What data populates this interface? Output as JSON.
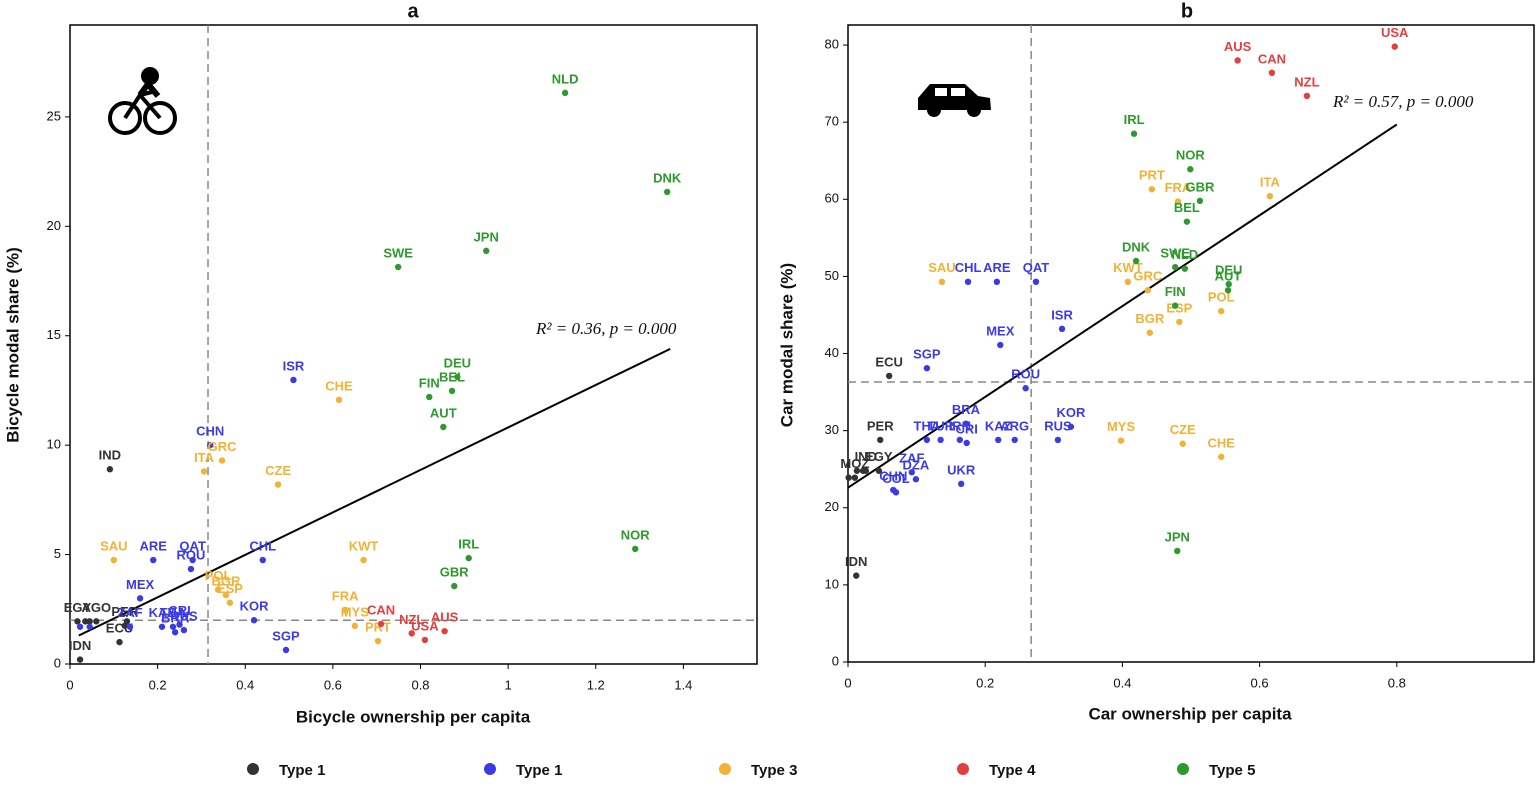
{
  "chart_data": [
    {
      "type": "scatter",
      "title": "a",
      "xlabel": "Bicycle ownership per capita",
      "ylabel": "Bicycle modal share (%)",
      "xlim": [
        0,
        1.568
      ],
      "ylim": [
        0,
        29.2
      ],
      "xticks": [
        0,
        0.2,
        0.4,
        0.6,
        0.8,
        1,
        1.2,
        1.4
      ],
      "yticks": [
        0,
        5,
        10,
        15,
        20,
        25
      ],
      "reference_lines": {
        "x": 0.315,
        "y": 2
      },
      "fit": {
        "x": [
          0.02,
          1.37
        ],
        "values": [
          1.3,
          14.4
        ]
      },
      "annotation": "R² = 0.36, p = 0.000",
      "series": [
        {
          "color": "#333333",
          "labels": [
            "IND",
            "IDN",
            "ECU",
            "PER",
            "EGY",
            "AGO",
            null,
            null,
            null
          ],
          "x": [
            0.091,
            0.023,
            0.113,
            0.125,
            0.017,
            0.06,
            0.035,
            0.045,
            0.13
          ],
          "values": [
            8.9,
            0.2,
            1.0,
            1.75,
            1.95,
            1.95,
            1.95,
            1.95,
            1.95
          ]
        },
        {
          "color": "#3b3be6",
          "labels": [
            "CHN",
            "ISR",
            "ARE",
            "QAT",
            "CHL",
            "ROU",
            "MEX",
            "ZAF",
            "THA",
            "CRI",
            "KAZ",
            "RUS",
            "BRA",
            "SGP",
            "KOR",
            null,
            null
          ],
          "x": [
            0.32,
            0.51,
            0.19,
            0.28,
            0.44,
            0.276,
            0.16,
            0.137,
            0.235,
            0.25,
            0.21,
            0.26,
            0.24,
            0.493,
            0.42,
            0.023,
            0.045
          ],
          "values": [
            10.0,
            12.98,
            4.75,
            4.75,
            4.75,
            4.34,
            3.0,
            1.7,
            1.7,
            1.8,
            1.7,
            1.55,
            1.45,
            0.64,
            2.0,
            1.7,
            1.7
          ]
        },
        {
          "color": "#f2b233",
          "labels": [
            "SAU",
            "GRC",
            "ITA",
            "CHE",
            "CZE",
            "KWT",
            "BGR",
            "POL",
            "ESP",
            "FRA",
            "MYS",
            "PRT"
          ],
          "x": [
            0.1,
            0.347,
            0.306,
            0.614,
            0.475,
            0.67,
            0.356,
            0.338,
            0.365,
            0.628,
            0.65,
            0.703
          ],
          "values": [
            4.75,
            9.3,
            8.8,
            12.07,
            8.2,
            4.75,
            3.15,
            3.4,
            2.8,
            2.47,
            1.74,
            1.05
          ]
        },
        {
          "color": "#e53e3e",
          "labels": [
            "CAN",
            "NZL",
            "USA",
            "AUS"
          ],
          "x": [
            0.71,
            0.78,
            0.81,
            0.855
          ],
          "values": [
            1.83,
            1.4,
            1.1,
            1.5
          ]
        },
        {
          "color": "#2e9a2e",
          "labels": [
            "NLD",
            "DNK",
            "JPN",
            "SWE",
            "DEU",
            "FIN",
            "BEL",
            "AUT",
            "NOR",
            "IRL",
            "GBR"
          ],
          "x": [
            1.13,
            1.363,
            0.95,
            0.749,
            0.884,
            0.82,
            0.872,
            0.852,
            1.29,
            0.91,
            0.877
          ],
          "values": [
            26.1,
            21.57,
            18.88,
            18.14,
            13.12,
            12.2,
            12.48,
            10.83,
            5.26,
            4.84,
            3.56
          ]
        }
      ]
    },
    {
      "type": "scatter",
      "title": "b",
      "xlabel": "Car ownership per capita",
      "ylabel": "Car modal share (%)",
      "xlim": [
        0,
        1.0
      ],
      "ylim": [
        0,
        82.6
      ],
      "xticks": [
        0,
        0.2,
        0.4,
        0.6,
        0.8
      ],
      "yticks": [
        0,
        10,
        20,
        30,
        40,
        50,
        60,
        70,
        80
      ],
      "reference_lines": {
        "x": 0.267,
        "y": 36.3
      },
      "fit": {
        "x": [
          0,
          0.8
        ],
        "values": [
          22.6,
          69.7
        ]
      },
      "annotation": "R² = 0.57, p = 0.000",
      "series": [
        {
          "color": "#333333",
          "labels": [
            "ECU",
            "PER",
            "IND",
            "EGY",
            "MOZ",
            "IDN",
            null,
            null,
            null
          ],
          "x": [
            0.06,
            0.047,
            0.026,
            0.045,
            0.01,
            0.012,
            0.013,
            0.022,
            0.001
          ],
          "values": [
            37.1,
            28.8,
            24.8,
            24.8,
            23.9,
            11.2,
            24.8,
            24.8,
            23.9
          ]
        },
        {
          "color": "#3b3be6",
          "labels": [
            "CHL",
            "ARE",
            "QAT",
            "ISR",
            "MEX",
            "SGP",
            "ROU",
            "BRA",
            "KOR",
            "TUR",
            "THA",
            "IRN",
            "KAZ",
            "ARG",
            "RUS",
            "CRI",
            "ZAF",
            "DZA",
            "UKR",
            "CHN",
            "COL"
          ],
          "x": [
            0.175,
            0.217,
            0.274,
            0.312,
            0.222,
            0.115,
            0.259,
            0.172,
            0.325,
            0.135,
            0.115,
            0.163,
            0.219,
            0.243,
            0.306,
            0.173,
            0.093,
            0.099,
            0.165,
            0.066,
            0.07
          ],
          "values": [
            49.3,
            49.3,
            49.3,
            43.2,
            41.1,
            38.1,
            35.5,
            30.9,
            30.5,
            28.8,
            28.8,
            28.8,
            28.8,
            28.8,
            28.8,
            28.4,
            24.6,
            23.7,
            23.1,
            22.3,
            22.0
          ]
        },
        {
          "color": "#f2b233",
          "labels": [
            "ITA",
            "PRT",
            "FRA",
            "KWT",
            "GRC",
            "SAU",
            "BGR",
            "ESP",
            "POL",
            "MYS",
            "CZE",
            "CHE"
          ],
          "x": [
            0.615,
            0.443,
            0.481,
            0.408,
            0.437,
            0.137,
            0.44,
            0.483,
            0.544,
            0.398,
            0.488,
            0.544
          ],
          "values": [
            60.4,
            61.3,
            59.7,
            49.3,
            48.2,
            49.3,
            42.7,
            44.1,
            45.5,
            28.7,
            28.3,
            26.6
          ]
        },
        {
          "color": "#e53e3e",
          "labels": [
            "USA",
            "AUS",
            "CAN",
            "NZL"
          ],
          "x": [
            0.797,
            0.568,
            0.618,
            0.669
          ],
          "values": [
            79.8,
            78.0,
            76.4,
            73.4
          ]
        },
        {
          "color": "#2e9a2e",
          "labels": [
            "IRL",
            "NOR",
            "GBR",
            "BEL",
            "DNK",
            "SWE",
            "NLD",
            "DEU",
            "AUT",
            "FIN",
            "JPN"
          ],
          "x": [
            0.417,
            0.499,
            0.513,
            0.494,
            0.42,
            0.477,
            0.491,
            0.555,
            0.554,
            0.477,
            0.48
          ],
          "values": [
            68.5,
            63.9,
            59.8,
            57.1,
            52.0,
            51.2,
            51.0,
            49.0,
            48.2,
            46.2,
            14.4
          ]
        }
      ]
    }
  ],
  "legend": [
    {
      "label": "Type 1",
      "color": "#333333"
    },
    {
      "label": "Type 1",
      "color": "#3b3be6"
    },
    {
      "label": "Type 3",
      "color": "#f2b233"
    },
    {
      "label": "Type 4",
      "color": "#e53e3e"
    },
    {
      "label": "Type 5",
      "color": "#2e9a2e"
    }
  ]
}
